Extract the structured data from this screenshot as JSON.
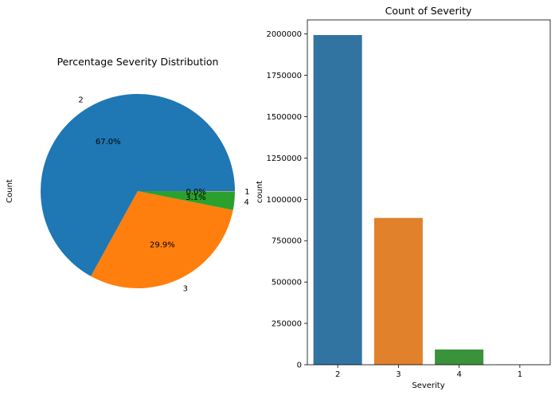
{
  "chart_data": [
    {
      "type": "pie",
      "title": "Percentage Severity Distribution",
      "ylabel": "Count",
      "slices": [
        {
          "label": "2",
          "pct_label": "67.0%",
          "value": 67.0,
          "color": "#1f77b4"
        },
        {
          "label": "3",
          "pct_label": "29.9%",
          "value": 29.9,
          "color": "#ff7f0e"
        },
        {
          "label": "4",
          "pct_label": "3.1%",
          "value": 3.1,
          "color": "#2ca02c"
        },
        {
          "label": "1",
          "pct_label": "0.0%",
          "value": 0.02,
          "color": "#d62728"
        }
      ]
    },
    {
      "type": "bar",
      "title": "Count of Severity",
      "xlabel": "Severity",
      "ylabel": "count",
      "categories": [
        "2",
        "3",
        "4",
        "1"
      ],
      "values": [
        1993410,
        887620,
        92337,
        800
      ],
      "colors": [
        "#3274a1",
        "#e1812c",
        "#3a923a",
        "#c03d3e"
      ],
      "ylim": [
        0,
        2085000
      ],
      "yticks": [
        0,
        250000,
        500000,
        750000,
        1000000,
        1250000,
        1500000,
        1750000,
        2000000
      ]
    }
  ]
}
